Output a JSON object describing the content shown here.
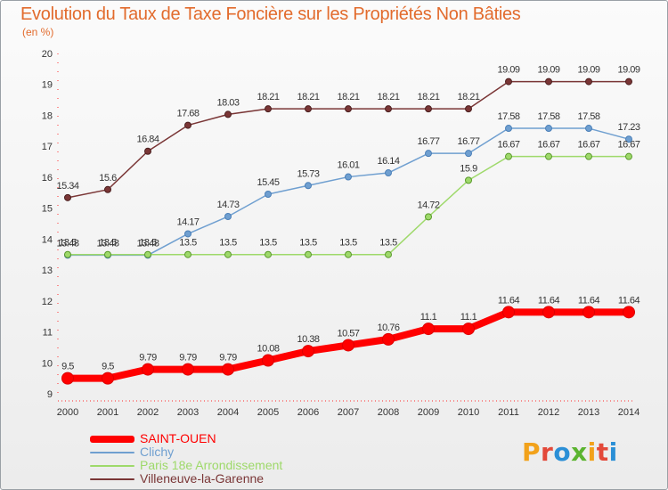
{
  "header": {
    "title": "Evolution du Taux de Taxe Foncière sur les Propriétés Non Bâties",
    "subtitle": "(en %)"
  },
  "logo": {
    "text": "Proxiti",
    "letters": [
      {
        "ch": "P",
        "color": "#f2a21b"
      },
      {
        "ch": "r",
        "color": "#e3493a"
      },
      {
        "ch": "o",
        "color": "#2b8fd6"
      },
      {
        "ch": "x",
        "color": "#5bb430"
      },
      {
        "ch": "i",
        "color": "#f2a21b"
      },
      {
        "ch": "t",
        "color": "#e3493a"
      },
      {
        "ch": "i",
        "color": "#2b8fd6"
      }
    ]
  },
  "chart_data": {
    "type": "line",
    "title": "Evolution du Taux de Taxe Foncière sur les Propriétés Non Bâties",
    "ylabel": "(en %)",
    "xlabel": "",
    "ylim": [
      9,
      20
    ],
    "yticks": [
      9,
      10,
      11,
      12,
      13,
      14,
      15,
      16,
      17,
      18,
      19,
      20
    ],
    "grid": false,
    "legend": "bottom-left",
    "categories": [
      "2000",
      "2001",
      "2002",
      "2003",
      "2004",
      "2005",
      "2006",
      "2007",
      "2008",
      "2009",
      "2010",
      "2011",
      "2012",
      "2013",
      "2014"
    ],
    "series": [
      {
        "name": "SAINT-OUEN",
        "color": "#ff0000",
        "values": [
          9.5,
          9.5,
          9.79,
          9.79,
          9.79,
          10.08,
          10.38,
          10.57,
          10.76,
          11.1,
          11.1,
          11.64,
          11.64,
          11.64,
          11.64
        ],
        "labels": [
          "9.5",
          "9.5",
          "9.79",
          "9.79",
          "9.79",
          "10.08",
          "10.38",
          "10.57",
          "10.76",
          "11.1",
          "11.1",
          "11.64",
          "11.64",
          "11.64",
          "11.64"
        ]
      },
      {
        "name": "Clichy",
        "color": "#6f9fd0",
        "values": [
          13.48,
          13.48,
          13.48,
          14.17,
          14.73,
          15.45,
          15.73,
          16.01,
          16.14,
          16.77,
          16.77,
          17.58,
          17.58,
          17.58,
          17.23
        ],
        "labels": [
          "13.48",
          "13.48",
          "13.48",
          "14.17",
          "14.73",
          "15.45",
          "15.73",
          "16.01",
          "16.14",
          "16.77",
          "16.77",
          "17.58",
          "17.58",
          "17.58",
          "17.23"
        ]
      },
      {
        "name": "Paris 18e  Arrondissement",
        "color": "#9ed96a",
        "values": [
          13.5,
          13.5,
          13.5,
          13.5,
          13.5,
          13.5,
          13.5,
          13.5,
          13.5,
          14.72,
          15.9,
          16.67,
          16.67,
          16.67,
          16.67
        ],
        "labels": [
          "13.5",
          "13.5",
          "13.5",
          "13.5",
          "13.5",
          "13.5",
          "13.5",
          "13.5",
          "13.5",
          "14.72",
          "15.9",
          "16.67",
          "16.67",
          "16.67",
          "16.67"
        ]
      },
      {
        "name": "Villeneuve-la-Garenne",
        "color": "#7a3636",
        "values": [
          15.34,
          15.6,
          16.84,
          17.68,
          18.03,
          18.21,
          18.21,
          18.21,
          18.21,
          18.21,
          18.21,
          19.09,
          19.09,
          19.09,
          19.09
        ],
        "labels": [
          "15.34",
          "15.6",
          "16.84",
          "17.68",
          "18.03",
          "18.21",
          "18.21",
          "18.21",
          "18.21",
          "18.21",
          "18.21",
          "19.09",
          "19.09",
          "19.09",
          "19.09"
        ]
      }
    ]
  }
}
